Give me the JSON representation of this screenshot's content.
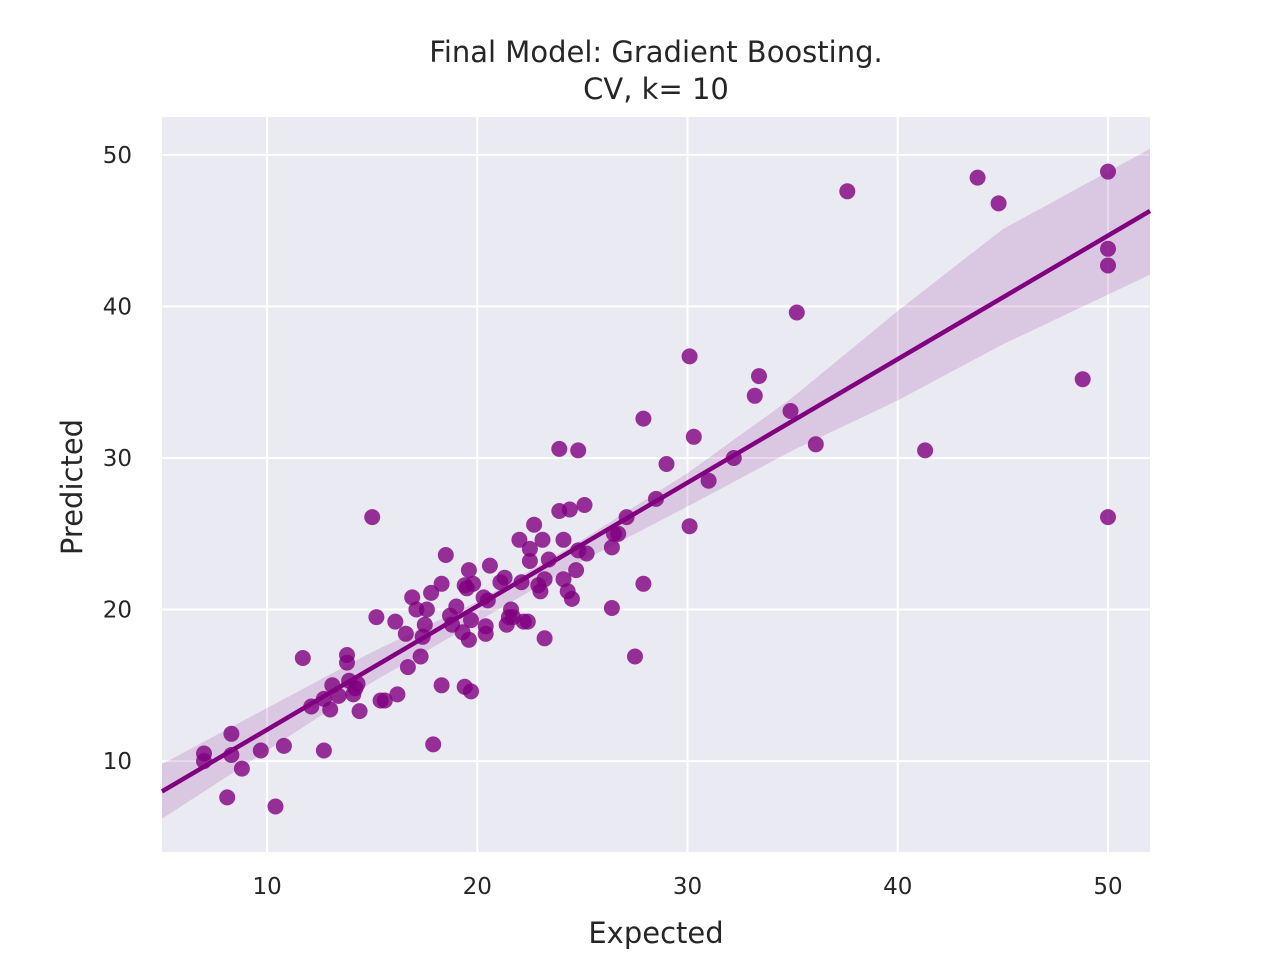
{
  "chart_data": {
    "type": "scatter",
    "title": "Final Model: Gradient Boosting.",
    "subtitle": "CV, k= 10",
    "xlabel": "Expected",
    "ylabel": "Predicted",
    "xlim": [
      5,
      52
    ],
    "ylim": [
      4,
      52.5
    ],
    "xticks": [
      10,
      20,
      30,
      40,
      50
    ],
    "yticks": [
      10,
      20,
      30,
      40,
      50
    ],
    "grid": true,
    "colors": {
      "points": "#800080",
      "line": "#800080",
      "band": "#800080",
      "plot_bg": "#eaeaf2",
      "grid": "#ffffff"
    },
    "regression": {
      "x_range": [
        5,
        52
      ],
      "line": [
        [
          5,
          8.0
        ],
        [
          52,
          46.3
        ]
      ],
      "band_upper": [
        [
          5,
          9.8
        ],
        [
          15,
          17.2
        ],
        [
          20,
          20.5
        ],
        [
          25,
          24.6
        ],
        [
          30,
          29.0
        ],
        [
          35,
          34.0
        ],
        [
          40,
          39.7
        ],
        [
          45,
          45.1
        ],
        [
          52,
          50.4
        ]
      ],
      "band_lower": [
        [
          5,
          6.2
        ],
        [
          15,
          15.2
        ],
        [
          20,
          19.2
        ],
        [
          25,
          23.2
        ],
        [
          30,
          26.8
        ],
        [
          35,
          30.5
        ],
        [
          40,
          33.8
        ],
        [
          45,
          37.5
        ],
        [
          52,
          42.1
        ]
      ]
    },
    "points": [
      [
        7.0,
        10.5
      ],
      [
        7.0,
        10.0
      ],
      [
        8.1,
        7.6
      ],
      [
        8.3,
        11.8
      ],
      [
        8.3,
        10.4
      ],
      [
        8.8,
        9.5
      ],
      [
        9.7,
        10.7
      ],
      [
        10.4,
        7.0
      ],
      [
        10.8,
        11.0
      ],
      [
        11.7,
        16.8
      ],
      [
        12.1,
        13.6
      ],
      [
        12.7,
        14.1
      ],
      [
        12.7,
        10.7
      ],
      [
        13.0,
        13.4
      ],
      [
        13.1,
        15.0
      ],
      [
        13.4,
        14.3
      ],
      [
        13.8,
        17.0
      ],
      [
        13.8,
        16.5
      ],
      [
        13.9,
        15.3
      ],
      [
        14.1,
        14.4
      ],
      [
        14.2,
        14.8
      ],
      [
        14.3,
        15.1
      ],
      [
        14.4,
        13.3
      ],
      [
        15.0,
        26.1
      ],
      [
        15.2,
        19.5
      ],
      [
        15.4,
        14.0
      ],
      [
        15.6,
        14.0
      ],
      [
        16.1,
        19.2
      ],
      [
        16.2,
        14.4
      ],
      [
        16.6,
        18.4
      ],
      [
        16.7,
        16.2
      ],
      [
        16.9,
        20.8
      ],
      [
        17.1,
        20.0
      ],
      [
        17.3,
        16.9
      ],
      [
        17.4,
        18.2
      ],
      [
        17.5,
        19.0
      ],
      [
        17.6,
        20.0
      ],
      [
        17.8,
        21.1
      ],
      [
        17.9,
        11.1
      ],
      [
        18.3,
        21.7
      ],
      [
        18.3,
        15.0
      ],
      [
        18.5,
        23.6
      ],
      [
        18.7,
        19.6
      ],
      [
        18.8,
        19.0
      ],
      [
        19.0,
        20.2
      ],
      [
        19.3,
        18.5
      ],
      [
        19.4,
        14.9
      ],
      [
        19.4,
        21.6
      ],
      [
        19.5,
        21.4
      ],
      [
        19.6,
        22.6
      ],
      [
        19.6,
        18.0
      ],
      [
        19.7,
        14.6
      ],
      [
        19.7,
        19.3
      ],
      [
        19.8,
        21.7
      ],
      [
        20.3,
        20.8
      ],
      [
        20.4,
        18.9
      ],
      [
        20.4,
        18.4
      ],
      [
        20.5,
        20.6
      ],
      [
        20.6,
        22.9
      ],
      [
        21.1,
        21.8
      ],
      [
        21.3,
        22.1
      ],
      [
        21.4,
        19.0
      ],
      [
        21.5,
        19.5
      ],
      [
        21.6,
        20.0
      ],
      [
        21.7,
        19.5
      ],
      [
        22.0,
        24.6
      ],
      [
        22.1,
        21.8
      ],
      [
        22.2,
        19.2
      ],
      [
        22.4,
        19.2
      ],
      [
        22.5,
        23.2
      ],
      [
        22.5,
        24.0
      ],
      [
        22.7,
        25.6
      ],
      [
        22.9,
        21.6
      ],
      [
        23.0,
        21.2
      ],
      [
        23.1,
        24.6
      ],
      [
        23.2,
        22.0
      ],
      [
        23.2,
        18.1
      ],
      [
        23.4,
        23.3
      ],
      [
        23.9,
        30.6
      ],
      [
        23.9,
        26.5
      ],
      [
        24.1,
        24.6
      ],
      [
        24.1,
        22.0
      ],
      [
        24.3,
        21.2
      ],
      [
        24.4,
        26.6
      ],
      [
        24.5,
        20.7
      ],
      [
        24.7,
        22.6
      ],
      [
        24.8,
        30.5
      ],
      [
        24.8,
        23.9
      ],
      [
        25.1,
        26.9
      ],
      [
        25.2,
        23.7
      ],
      [
        26.4,
        24.1
      ],
      [
        26.4,
        20.1
      ],
      [
        26.5,
        25.0
      ],
      [
        26.7,
        25.0
      ],
      [
        27.1,
        26.1
      ],
      [
        27.5,
        16.9
      ],
      [
        27.9,
        32.6
      ],
      [
        27.9,
        21.7
      ],
      [
        28.5,
        27.3
      ],
      [
        29.0,
        29.6
      ],
      [
        30.1,
        36.7
      ],
      [
        30.1,
        25.5
      ],
      [
        30.3,
        31.4
      ],
      [
        31.0,
        28.5
      ],
      [
        32.2,
        30.0
      ],
      [
        33.2,
        34.1
      ],
      [
        33.4,
        35.4
      ],
      [
        34.9,
        33.1
      ],
      [
        35.2,
        39.6
      ],
      [
        36.1,
        30.9
      ],
      [
        37.6,
        47.6
      ],
      [
        41.3,
        30.5
      ],
      [
        43.8,
        48.5
      ],
      [
        44.8,
        46.8
      ],
      [
        48.8,
        35.2
      ],
      [
        50.0,
        48.9
      ],
      [
        50.0,
        43.8
      ],
      [
        50.0,
        42.7
      ],
      [
        50.0,
        26.1
      ]
    ]
  }
}
